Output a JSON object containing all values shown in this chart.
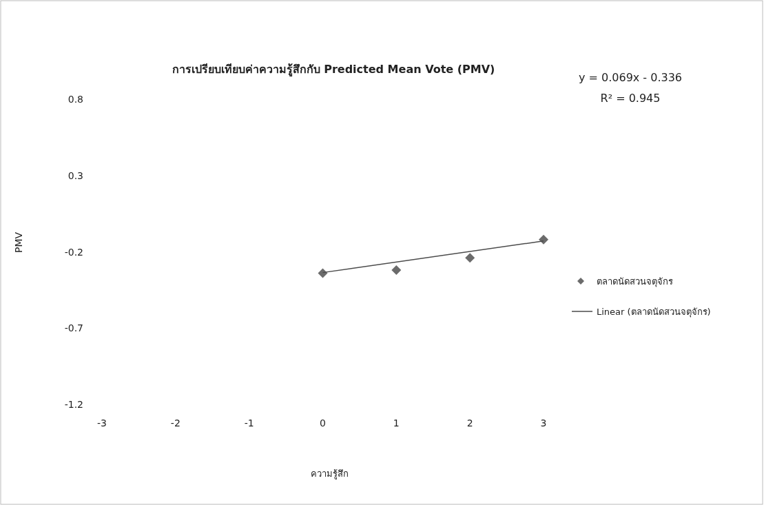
{
  "chart_data": {
    "type": "scatter",
    "title": "การเปรียบเทียบค่าความรู้สึกกับ Predicted Mean Vote (PMV)",
    "xlabel": "ความรู้สึก",
    "ylabel": "PMV",
    "xlim": [
      -3,
      3
    ],
    "xticks": [
      -3,
      -2,
      -1,
      0,
      1,
      2,
      3
    ],
    "ylim": [
      -1.2,
      0.8
    ],
    "yticks": [
      -1.2,
      -0.7,
      -0.2,
      0.3,
      0.8
    ],
    "legend": "right",
    "marker": "diamond",
    "series": [
      {
        "name": "ตลาดนัดสวนจตุจักร",
        "color": "#6b6b6b",
        "x": [
          0,
          1,
          2,
          3
        ],
        "values": [
          -0.34,
          -0.32,
          -0.24,
          -0.12
        ]
      },
      {
        "type": "line",
        "name": "Linear (ตลาดนัดสวนจตุจักร)",
        "color": "#4a4a4a",
        "marker": "none",
        "x": [
          0,
          3
        ],
        "values": [
          -0.336,
          -0.129
        ]
      }
    ],
    "annotations": [
      "y = 0.069x - 0.336",
      "R² = 0.945"
    ]
  }
}
